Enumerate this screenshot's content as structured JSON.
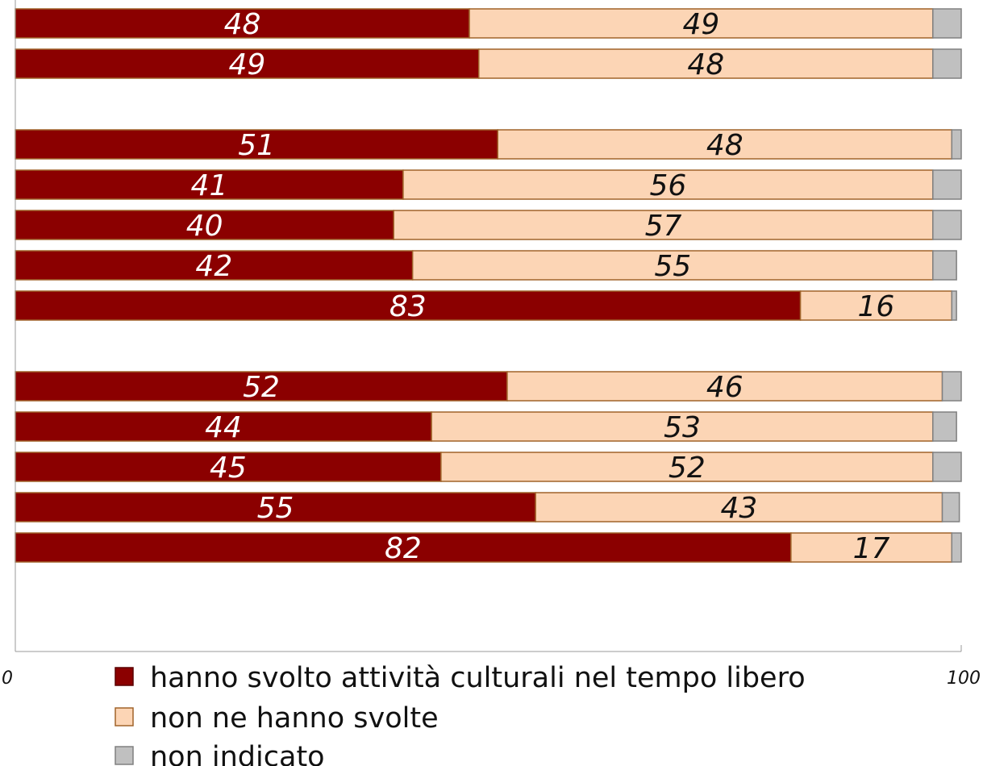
{
  "chart_data": {
    "type": "bar",
    "orientation": "horizontal",
    "stacked": true,
    "xlim": [
      0,
      100
    ],
    "x_ticks": [
      "0",
      "100"
    ],
    "grid": false,
    "legend_position": "bottom",
    "groups": [
      {
        "rows": [
          0,
          1
        ]
      },
      {
        "rows": [
          2,
          3,
          4,
          5,
          6
        ]
      },
      {
        "rows": [
          7,
          8,
          9,
          10,
          11
        ]
      }
    ],
    "series": [
      {
        "name": "hanno svolto attività culturali nel tempo libero",
        "color": "#8b0000",
        "label_color": "#ffffff",
        "values": [
          48,
          49,
          51,
          41,
          40,
          42,
          83,
          52,
          44,
          45,
          55,
          82
        ]
      },
      {
        "name": "non ne hanno svolte",
        "color": "#fcd5b5",
        "label_color": "#111111",
        "values": [
          49,
          48,
          48,
          56,
          57,
          55,
          16,
          46,
          53,
          52,
          43,
          17
        ]
      },
      {
        "name": "non indicato",
        "color": "#c0c0c0",
        "label_color": "#111111",
        "values": [
          3,
          3,
          1.5,
          3.5,
          3,
          2.5,
          0.5,
          2,
          2.5,
          3,
          1.8,
          1.3
        ]
      }
    ],
    "show_labels_for_series": [
      0,
      1
    ],
    "border_color": "#a0632a"
  }
}
